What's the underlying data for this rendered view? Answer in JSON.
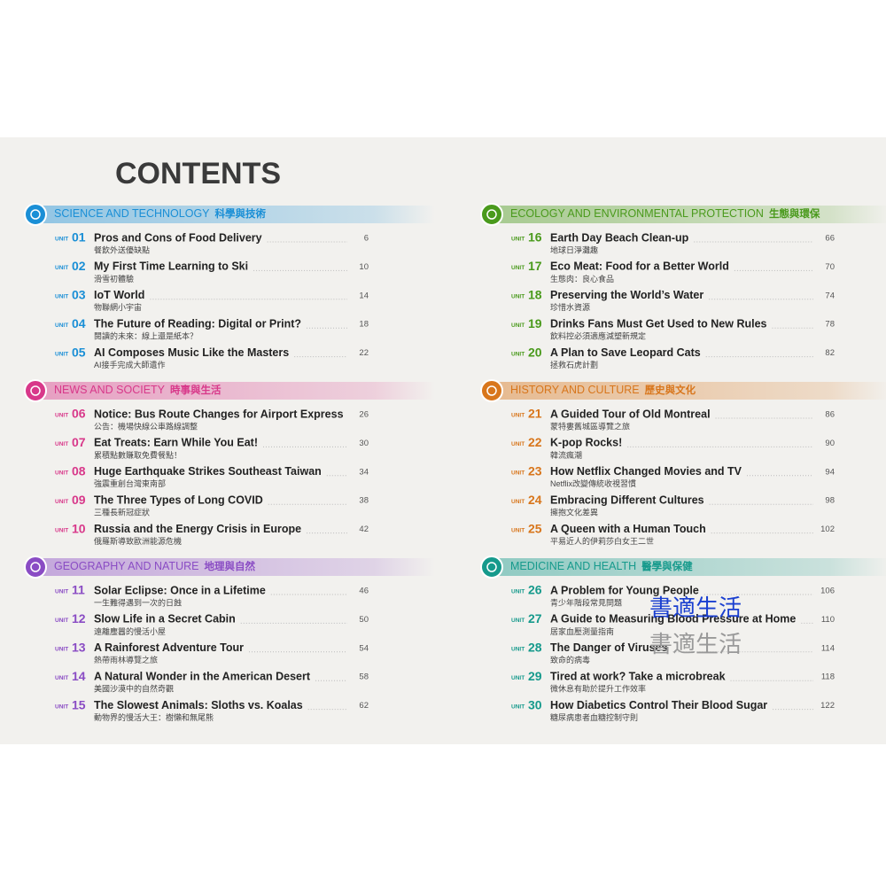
{
  "title": "CONTENTS",
  "unit_label": "UNIT",
  "sections": [
    {
      "name": "SCIENCE AND TECHNOLOGY",
      "name_zh": "科學與技術",
      "color": "#1a8fd6",
      "units": [
        {
          "number": "01",
          "title": "Pros and Cons of Food Delivery",
          "subtitle": "餐飲外送優缺點",
          "page": 6
        },
        {
          "number": "02",
          "title": "My First Time Learning to Ski",
          "subtitle": "滑雪初體驗",
          "page": 10
        },
        {
          "number": "03",
          "title": "IoT World",
          "subtitle": "物聯網小宇宙",
          "page": 14
        },
        {
          "number": "04",
          "title": "The Future of Reading: Digital or Print?",
          "subtitle": "閱讀的未來：線上還是紙本？",
          "page": 18
        },
        {
          "number": "05",
          "title": "AI Composes Music Like the Masters",
          "subtitle": "AI接手完成大師遺作",
          "page": 22
        }
      ]
    },
    {
      "name": "NEWS AND SOCIETY",
      "name_zh": "時事與生活",
      "color": "#d8388a",
      "units": [
        {
          "number": "06",
          "title": "Notice: Bus Route Changes for Airport Express",
          "subtitle": "公告：機場快線公車路線調整",
          "page": 26
        },
        {
          "number": "07",
          "title": "Eat Treats: Earn While You Eat!",
          "subtitle": "累積點數賺取免費餐點！",
          "page": 30
        },
        {
          "number": "08",
          "title": "Huge Earthquake Strikes Southeast Taiwan",
          "subtitle": "強震重創台灣東南部",
          "page": 34
        },
        {
          "number": "09",
          "title": "The Three Types of Long COVID",
          "subtitle": "三種長新冠症狀",
          "page": 38
        },
        {
          "number": "10",
          "title": "Russia and the Energy Crisis in Europe",
          "subtitle": "俄羅斯導致歐洲能源危機",
          "page": 42
        }
      ]
    },
    {
      "name": "GEOGRAPHY AND NATURE",
      "name_zh": "地理與自然",
      "color": "#8a4cc4",
      "units": [
        {
          "number": "11",
          "title": "Solar Eclipse: Once in a Lifetime",
          "subtitle": "一生難得遇到一次的日蝕",
          "page": 46
        },
        {
          "number": "12",
          "title": "Slow Life in a Secret Cabin",
          "subtitle": "遠離塵囂的慢活小屋",
          "page": 50
        },
        {
          "number": "13",
          "title": "A Rainforest Adventure Tour",
          "subtitle": "熱帶雨林導覽之旅",
          "page": 54
        },
        {
          "number": "14",
          "title": "A Natural Wonder in the American Desert",
          "subtitle": "美國沙漠中的自然奇觀",
          "page": 58
        },
        {
          "number": "15",
          "title": "The Slowest Animals: Sloths vs. Koalas",
          "subtitle": "動物界的慢活大王：樹懶和無尾熊",
          "page": 62
        }
      ]
    },
    {
      "name": "ECOLOGY AND ENVIRONMENTAL PROTECTION",
      "name_zh": "生態與環保",
      "color": "#4a9a1c",
      "units": [
        {
          "number": "16",
          "title": "Earth Day Beach Clean-up",
          "subtitle": "地球日淨灘趣",
          "page": 66
        },
        {
          "number": "17",
          "title": "Eco Meat: Food for a Better World",
          "subtitle": "生態肉：良心食品",
          "page": 70
        },
        {
          "number": "18",
          "title": "Preserving the World’s Water",
          "subtitle": "珍惜水資源",
          "page": 74
        },
        {
          "number": "19",
          "title": "Drinks Fans Must Get Used to New Rules",
          "subtitle": "飲料控必須適應減塑新規定",
          "page": 78
        },
        {
          "number": "20",
          "title": "A Plan to Save Leopard Cats",
          "subtitle": "拯救石虎計劃",
          "page": 82
        }
      ]
    },
    {
      "name": "HISTORY AND CULTURE",
      "name_zh": "歷史與文化",
      "color": "#d8761c",
      "units": [
        {
          "number": "21",
          "title": "A Guided Tour of Old Montreal",
          "subtitle": "蒙特婁舊城區導覽之旅",
          "page": 86
        },
        {
          "number": "22",
          "title": "K-pop Rocks!",
          "subtitle": "韓流瘋潮",
          "page": 90
        },
        {
          "number": "23",
          "title": "How Netflix Changed Movies and TV",
          "subtitle": "Netflix改變傳統收視習慣",
          "page": 94
        },
        {
          "number": "24",
          "title": "Embracing Different Cultures",
          "subtitle": "擁抱文化差異",
          "page": 98
        },
        {
          "number": "25",
          "title": "A Queen with a Human Touch",
          "subtitle": "平易近人的伊莉莎白女王二世",
          "page": 102
        }
      ]
    },
    {
      "name": "MEDICINE AND HEALTH",
      "name_zh": "醫學與保健",
      "color": "#169a8c",
      "units": [
        {
          "number": "26",
          "title": "A Problem for Young People",
          "subtitle": "青少年階段常見問題",
          "page": 106
        },
        {
          "number": "27",
          "title": "A Guide to Measuring Blood Pressure at Home",
          "subtitle": "居家血壓測量指南",
          "page": 110
        },
        {
          "number": "28",
          "title": "The Danger of Viruses",
          "subtitle": "致命的病毒",
          "page": 114
        },
        {
          "number": "29",
          "title": "Tired at work? Take a microbreak",
          "subtitle": "微休息有助於提升工作效率",
          "page": 118
        },
        {
          "number": "30",
          "title": "How Diabetics Control Their Blood Sugar",
          "subtitle": "糖尿病患者血糖控制守則",
          "page": 122
        }
      ]
    }
  ],
  "watermark": [
    "書適生活",
    "書適生活"
  ]
}
